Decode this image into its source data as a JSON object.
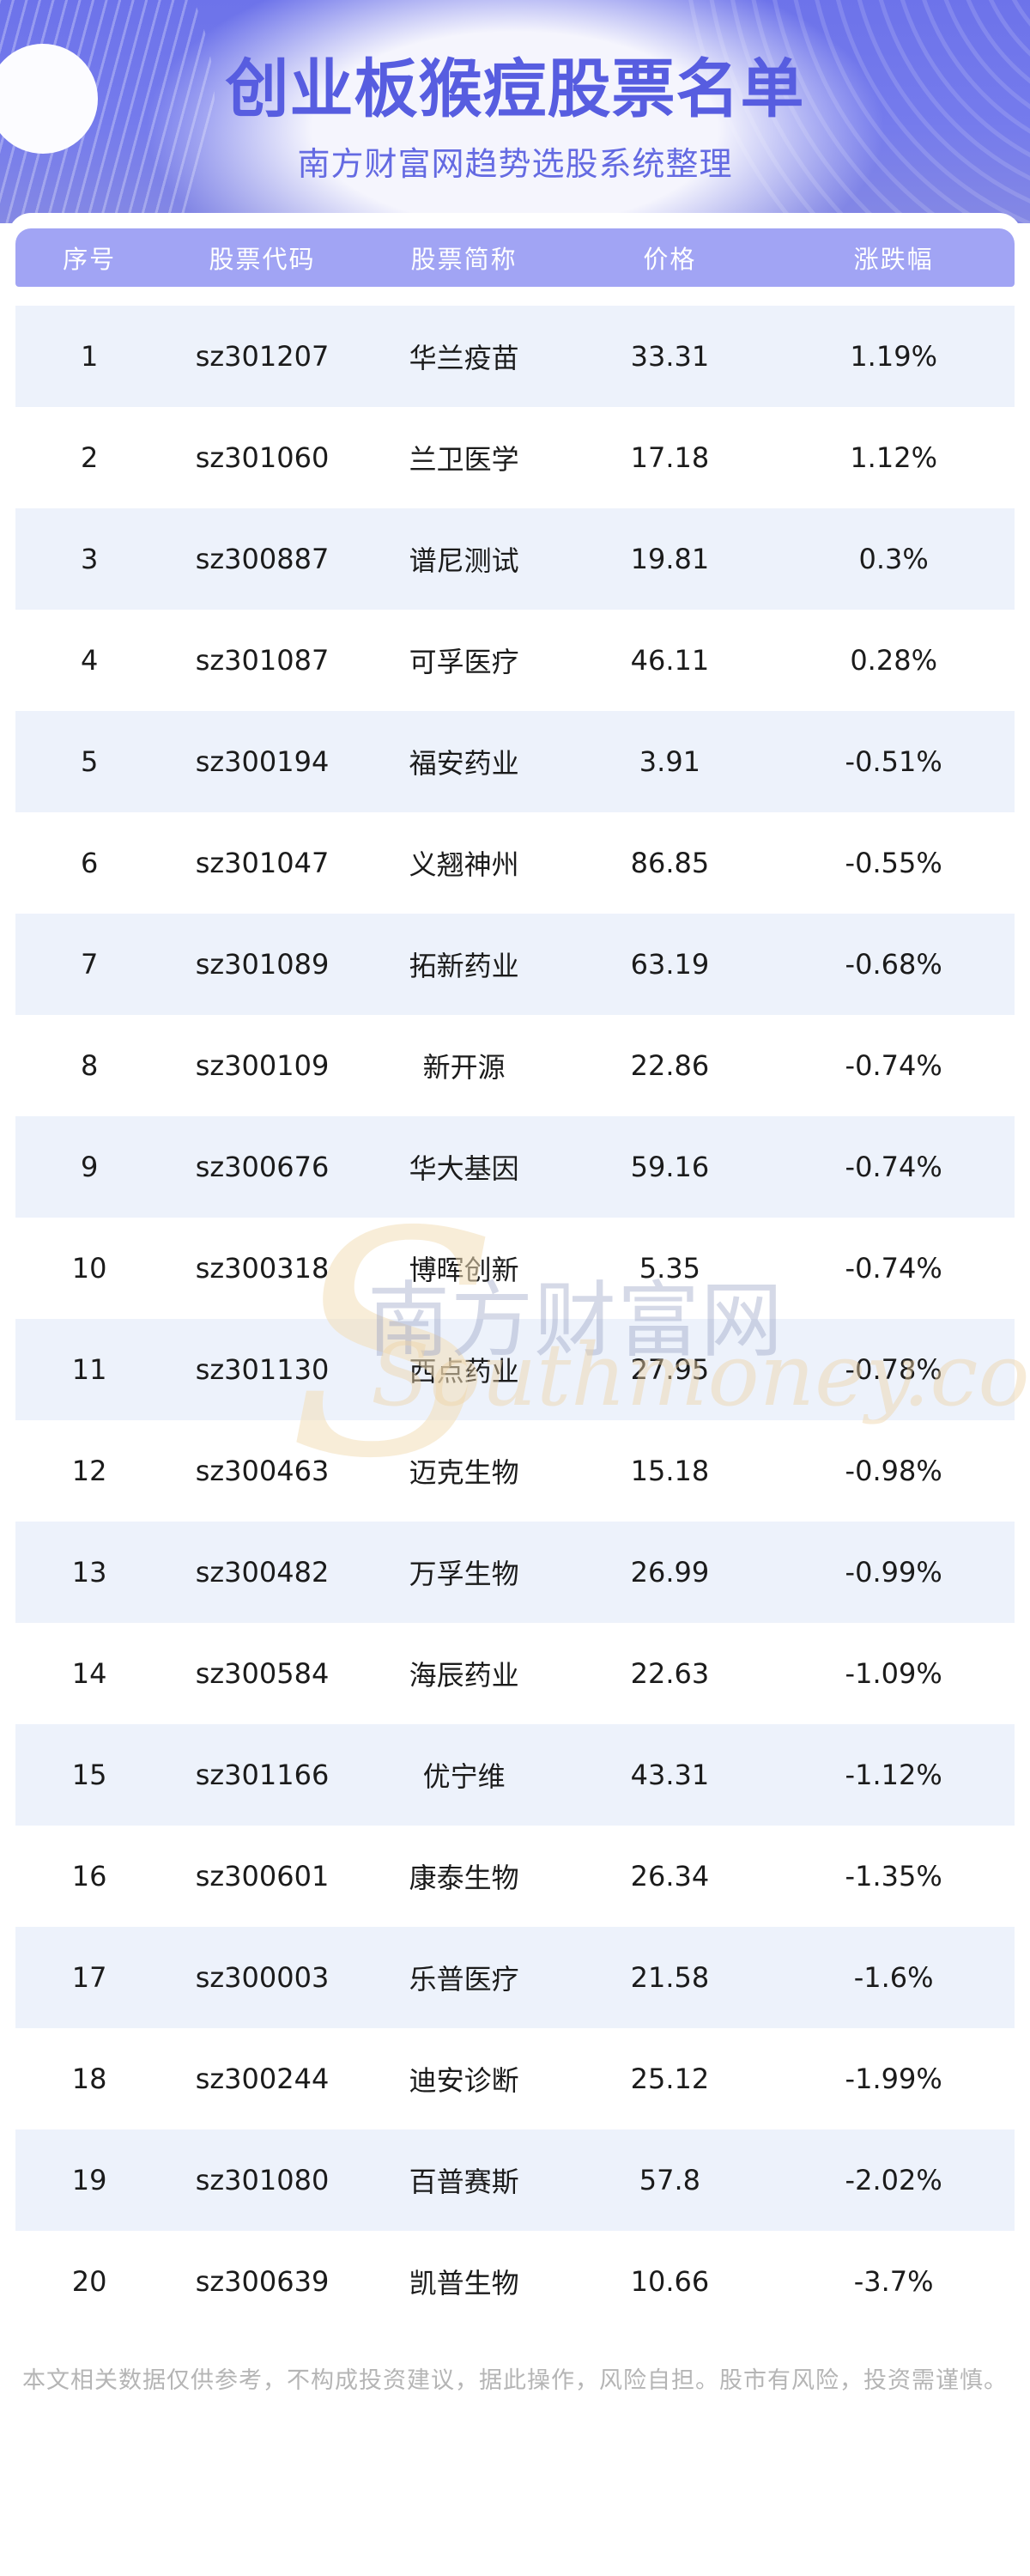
{
  "page": {
    "title": "创业板猴痘股票名单",
    "subtitle": "南方财富网趋势选股系统整理",
    "footer": "本文相关数据仅供参考，不构成投资建议，据此操作，风险自担。股市有风险，投资需谨慎。"
  },
  "watermark": {
    "swoosh": "S",
    "cn": "南方财富网",
    "en": "Southmoney.com"
  },
  "colors": {
    "hero_purple_top": "#6d73ea",
    "hero_purple_bottom": "#8488e4",
    "header_bar": "#a1a4f4",
    "title_text": "#575de0",
    "row_alt_background": "#edf2fb",
    "row_text": "#1b1b1b",
    "footer_text": "#b5b5b5"
  },
  "table": {
    "columns": [
      "序号",
      "股票代码",
      "股票简称",
      "价格",
      "涨跌幅"
    ],
    "rows": [
      {
        "index": "1",
        "code": "sz301207",
        "name": "华兰疫苗",
        "price": "33.31",
        "change": "1.19%"
      },
      {
        "index": "2",
        "code": "sz301060",
        "name": "兰卫医学",
        "price": "17.18",
        "change": "1.12%"
      },
      {
        "index": "3",
        "code": "sz300887",
        "name": "谱尼测试",
        "price": "19.81",
        "change": "0.3%"
      },
      {
        "index": "4",
        "code": "sz301087",
        "name": "可孚医疗",
        "price": "46.11",
        "change": "0.28%"
      },
      {
        "index": "5",
        "code": "sz300194",
        "name": "福安药业",
        "price": "3.91",
        "change": "-0.51%"
      },
      {
        "index": "6",
        "code": "sz301047",
        "name": "义翘神州",
        "price": "86.85",
        "change": "-0.55%"
      },
      {
        "index": "7",
        "code": "sz301089",
        "name": "拓新药业",
        "price": "63.19",
        "change": "-0.68%"
      },
      {
        "index": "8",
        "code": "sz300109",
        "name": "新开源",
        "price": "22.86",
        "change": "-0.74%"
      },
      {
        "index": "9",
        "code": "sz300676",
        "name": "华大基因",
        "price": "59.16",
        "change": "-0.74%"
      },
      {
        "index": "10",
        "code": "sz300318",
        "name": "博晖创新",
        "price": "5.35",
        "change": "-0.74%"
      },
      {
        "index": "11",
        "code": "sz301130",
        "name": "西点药业",
        "price": "27.95",
        "change": "-0.78%"
      },
      {
        "index": "12",
        "code": "sz300463",
        "name": "迈克生物",
        "price": "15.18",
        "change": "-0.98%"
      },
      {
        "index": "13",
        "code": "sz300482",
        "name": "万孚生物",
        "price": "26.99",
        "change": "-0.99%"
      },
      {
        "index": "14",
        "code": "sz300584",
        "name": "海辰药业",
        "price": "22.63",
        "change": "-1.09%"
      },
      {
        "index": "15",
        "code": "sz301166",
        "name": "优宁维",
        "price": "43.31",
        "change": "-1.12%"
      },
      {
        "index": "16",
        "code": "sz300601",
        "name": "康泰生物",
        "price": "26.34",
        "change": "-1.35%"
      },
      {
        "index": "17",
        "code": "sz300003",
        "name": "乐普医疗",
        "price": "21.58",
        "change": "-1.6%"
      },
      {
        "index": "18",
        "code": "sz300244",
        "name": "迪安诊断",
        "price": "25.12",
        "change": "-1.99%"
      },
      {
        "index": "19",
        "code": "sz301080",
        "name": "百普赛斯",
        "price": "57.8",
        "change": "-2.02%"
      },
      {
        "index": "20",
        "code": "sz300639",
        "name": "凯普生物",
        "price": "10.66",
        "change": "-3.7%"
      }
    ]
  }
}
